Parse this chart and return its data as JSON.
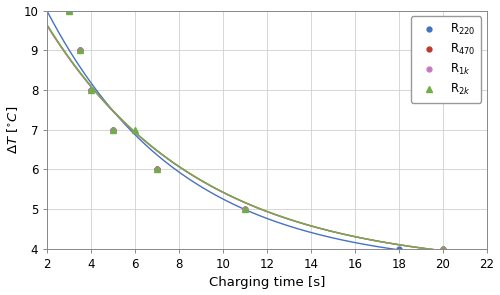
{
  "series": [
    {
      "label": "R$_{220}$",
      "color": "#4472c4",
      "marker": "o",
      "markersize": 3.5,
      "markevery_x": [
        3,
        3.5,
        4,
        5,
        7,
        18
      ],
      "markevery_y": [
        10,
        9,
        8,
        7,
        6,
        4
      ],
      "tau": 4.4,
      "x_end": 21
    },
    {
      "label": "R$_{470}$",
      "color": "#c0392b",
      "marker": "o",
      "markersize": 3.5,
      "markevery_x": [
        3,
        3.5,
        4,
        5,
        7,
        11,
        20
      ],
      "markevery_y": [
        10,
        9,
        8,
        7,
        6,
        5,
        4
      ],
      "tau": 5.5,
      "x_end": 21
    },
    {
      "label": "R$_{1k}$",
      "color": "#c878c0",
      "marker": "o",
      "markersize": 3.5,
      "markevery_x": [
        3,
        3.5,
        4,
        5,
        7,
        11,
        20
      ],
      "markevery_y": [
        10,
        9,
        8,
        7,
        6,
        5,
        4
      ],
      "tau": 6.0,
      "x_end": 21
    },
    {
      "label": "R$_{2k}$",
      "color": "#70ad47",
      "marker": "^",
      "markersize": 4,
      "markevery_x": [
        3,
        3.5,
        4,
        5,
        6,
        7,
        11,
        20
      ],
      "markevery_y": [
        10,
        9,
        8,
        7,
        7,
        6,
        5,
        4
      ],
      "tau": 7.0,
      "x_end": 21
    }
  ],
  "xlabel": "Charging time [s]",
  "ylabel": "$\\Delta T$ [$^{\\circ}C$]",
  "xlim": [
    2,
    22
  ],
  "ylim": [
    4,
    10
  ],
  "xticks": [
    2,
    4,
    6,
    8,
    10,
    12,
    14,
    16,
    18,
    20,
    22
  ],
  "yticks": [
    4,
    5,
    6,
    7,
    8,
    9,
    10
  ],
  "grid_color": "#d0d0d0",
  "bg_color": "#ffffff",
  "legend_loc": "upper right",
  "linewidth": 1.0
}
